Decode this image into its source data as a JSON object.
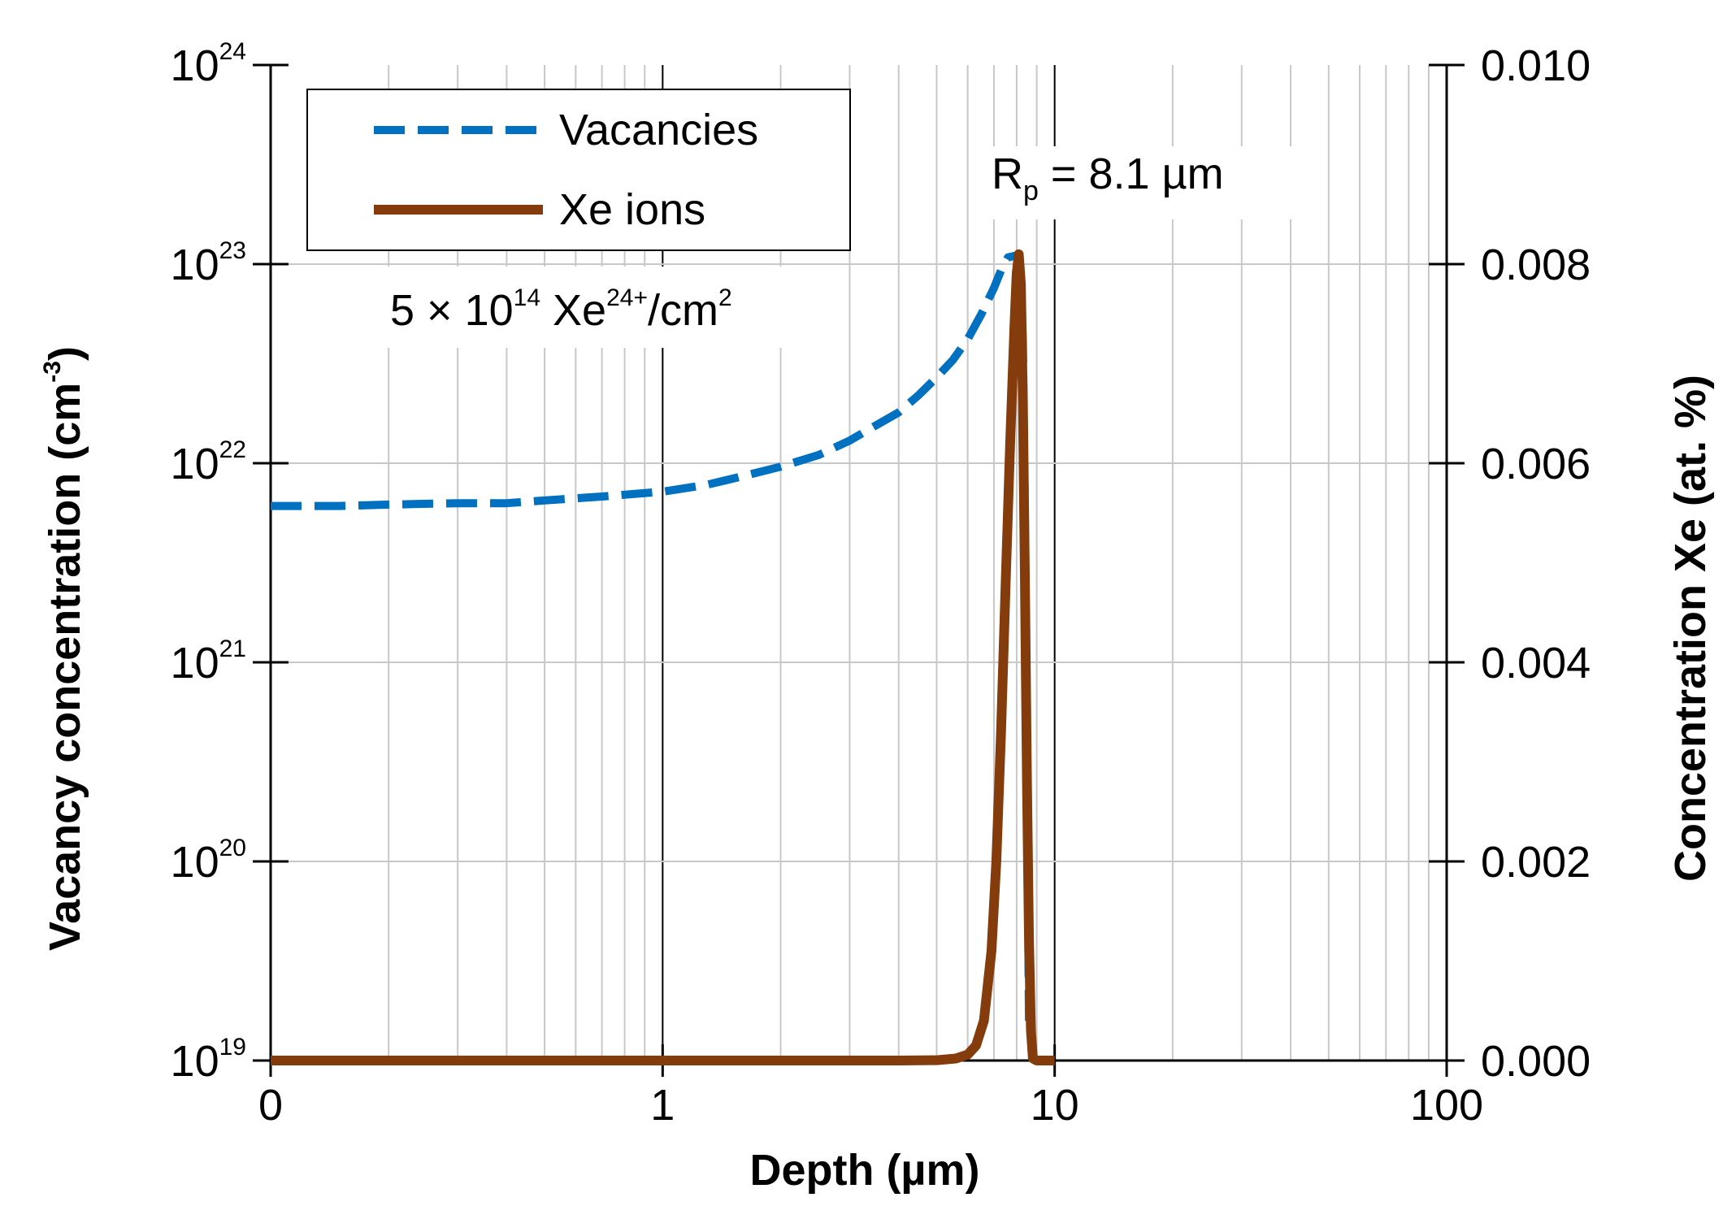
{
  "chart_data": {
    "type": "line",
    "x_scale": "log",
    "xlabel": "Depth (µm)",
    "xlim": [
      0.1,
      100
    ],
    "x_ticks": [
      {
        "value": 0.1,
        "label": "0"
      },
      {
        "value": 1,
        "label": "1"
      },
      {
        "value": 10,
        "label": "10"
      },
      {
        "value": 100,
        "label": "100"
      }
    ],
    "y_left": {
      "label_main": "Vacancy concentration (cm",
      "label_sup": "-3",
      "label_end": ")",
      "scale": "log",
      "lim": [
        1e+19,
        1e+24
      ],
      "ticks": [
        {
          "value": 1e+19,
          "base": "10",
          "exp": "19"
        },
        {
          "value": 1e+20,
          "base": "10",
          "exp": "20"
        },
        {
          "value": 1e+21,
          "base": "10",
          "exp": "21"
        },
        {
          "value": 1e+22,
          "base": "10",
          "exp": "22"
        },
        {
          "value": 1e+23,
          "base": "10",
          "exp": "23"
        },
        {
          "value": 1e+24,
          "base": "10",
          "exp": "24"
        }
      ]
    },
    "y_right": {
      "label": "Concentration Xe (at. %)",
      "scale": "linear",
      "lim": [
        0,
        0.01
      ],
      "ticks": [
        {
          "value": 0,
          "label": "0.000"
        },
        {
          "value": 0.002,
          "label": "0.002"
        },
        {
          "value": 0.004,
          "label": "0.004"
        },
        {
          "value": 0.006,
          "label": "0.006"
        },
        {
          "value": 0.008,
          "label": "0.008"
        },
        {
          "value": 0.01,
          "label": "0.010"
        }
      ]
    },
    "grid": true,
    "legend_position": "top-left",
    "series": [
      {
        "name": "Vacancies",
        "axis": "left",
        "style": "dashed",
        "color": "#0070C0",
        "points": [
          [
            0.1,
            6.1e+21
          ],
          [
            0.15,
            6.1e+21
          ],
          [
            0.2,
            6.2e+21
          ],
          [
            0.3,
            6.3e+21
          ],
          [
            0.4,
            6.3e+21
          ],
          [
            0.5,
            6.5e+21
          ],
          [
            0.7,
            6.8e+21
          ],
          [
            1.0,
            7.2e+21
          ],
          [
            1.3,
            7.8e+21
          ],
          [
            1.6,
            8.6e+21
          ],
          [
            2.0,
            9.6e+21
          ],
          [
            2.5,
            1.1e+22
          ],
          [
            3.0,
            1.3e+22
          ],
          [
            3.5,
            1.55e+22
          ],
          [
            4.0,
            1.8e+22
          ],
          [
            4.5,
            2.2e+22
          ],
          [
            5.0,
            2.7e+22
          ],
          [
            5.5,
            3.3e+22
          ],
          [
            6.0,
            4.2e+22
          ],
          [
            6.5,
            5.6e+22
          ],
          [
            7.0,
            7.6e+22
          ],
          [
            7.3,
            9.3e+22
          ],
          [
            7.6,
            1.08e+23
          ],
          [
            7.9,
            1.1e+23
          ],
          [
            8.1,
            1.08e+23
          ],
          [
            8.2,
            9e+22
          ],
          [
            8.3,
            4e+22
          ],
          [
            8.4,
            5e+21
          ],
          [
            8.5,
            3e+20
          ],
          [
            8.6,
            1.5e+19
          ]
        ]
      },
      {
        "name": "Xe ions",
        "axis": "right",
        "style": "solid",
        "color": "#843C0C",
        "points": [
          [
            0.1,
            0
          ],
          [
            1.0,
            0
          ],
          [
            4.0,
            0
          ],
          [
            5.0,
            3e-06
          ],
          [
            5.6,
            2e-05
          ],
          [
            6.0,
            6e-05
          ],
          [
            6.3,
            0.00015
          ],
          [
            6.6,
            0.0004
          ],
          [
            6.9,
            0.0011
          ],
          [
            7.1,
            0.002
          ],
          [
            7.3,
            0.0033
          ],
          [
            7.5,
            0.0048
          ],
          [
            7.7,
            0.0062
          ],
          [
            7.9,
            0.0074
          ],
          [
            8.0,
            0.0079
          ],
          [
            8.1,
            0.0081
          ],
          [
            8.2,
            0.0078
          ],
          [
            8.3,
            0.0066
          ],
          [
            8.4,
            0.0048
          ],
          [
            8.5,
            0.0028
          ],
          [
            8.6,
            0.0012
          ],
          [
            8.7,
            0.0003
          ],
          [
            8.8,
            2e-05
          ],
          [
            9.0,
            0
          ],
          [
            10.0,
            0
          ]
        ]
      }
    ],
    "annotations": {
      "rp": {
        "main": "R",
        "sub": "p",
        "rest": " = 8.1 µm"
      },
      "dose": {
        "part1": "5 × 10",
        "sup1": "14",
        "part2": " Xe",
        "sup2": "24+",
        "part3": "/cm",
        "sup3": "2"
      }
    }
  }
}
